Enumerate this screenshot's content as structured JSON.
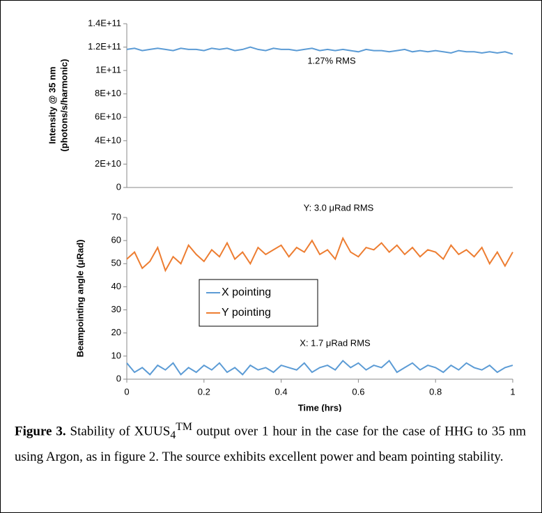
{
  "chart_data": [
    {
      "type": "line",
      "ylabel": [
        "Intensity @ 35 nm",
        "(photons/s/harmonic)"
      ],
      "xlim": [
        0,
        1
      ],
      "ylim": [
        0,
        140000000000.0
      ],
      "yticks": [
        0,
        {
          "value": 20000000000.0,
          "label": "2E+10"
        },
        {
          "value": 40000000000.0,
          "label": "4E+10"
        },
        {
          "value": 60000000000.0,
          "label": "6E+10"
        },
        {
          "value": 80000000000.0,
          "label": "8E+10"
        },
        {
          "value": 100000000000.0,
          "label": "1E+11"
        },
        {
          "value": 120000000000.0,
          "label": "1.2E+11"
        },
        {
          "value": 140000000000.0,
          "label": "1.4E+11"
        }
      ],
      "annotations": [
        {
          "text": "1.27% RMS"
        }
      ],
      "x": [
        0,
        0.02,
        0.04,
        0.06,
        0.08,
        0.1,
        0.12,
        0.14,
        0.16,
        0.18,
        0.2,
        0.22,
        0.24,
        0.26,
        0.28,
        0.3,
        0.32,
        0.34,
        0.36,
        0.38,
        0.4,
        0.42,
        0.44,
        0.46,
        0.48,
        0.5,
        0.52,
        0.54,
        0.56,
        0.58,
        0.6,
        0.62,
        0.64,
        0.66,
        0.68,
        0.7,
        0.72,
        0.74,
        0.76,
        0.78,
        0.8,
        0.82,
        0.84,
        0.86,
        0.88,
        0.9,
        0.92,
        0.94,
        0.96,
        0.98,
        1
      ],
      "series": [
        {
          "name": "Intensity",
          "color": "#5b9bd5",
          "values": [
            118000000000.0,
            119000000000.0,
            117000000000.0,
            118000000000.0,
            119000000000.0,
            118000000000.0,
            117000000000.0,
            119000000000.0,
            118000000000.0,
            118000000000.0,
            117000000000.0,
            119000000000.0,
            118000000000.0,
            119000000000.0,
            117000000000.0,
            118000000000.0,
            120000000000.0,
            118000000000.0,
            117000000000.0,
            119000000000.0,
            118000000000.0,
            118000000000.0,
            117000000000.0,
            118000000000.0,
            119000000000.0,
            117000000000.0,
            118000000000.0,
            117000000000.0,
            118000000000.0,
            117000000000.0,
            116000000000.0,
            118000000000.0,
            117000000000.0,
            117000000000.0,
            116000000000.0,
            117000000000.0,
            118000000000.0,
            116000000000.0,
            117000000000.0,
            116000000000.0,
            117000000000.0,
            116000000000.0,
            115000000000.0,
            117000000000.0,
            116000000000.0,
            116000000000.0,
            115000000000.0,
            116000000000.0,
            115000000000.0,
            116000000000.0,
            114000000000.0
          ]
        }
      ]
    },
    {
      "type": "line",
      "ylabel": [
        "Beampointing angle (μRad)"
      ],
      "xlabel": "Time (hrs)",
      "xlim": [
        0,
        1
      ],
      "xticks": [
        0,
        0.2,
        0.4,
        0.6,
        0.8,
        1
      ],
      "ylim": [
        0,
        70
      ],
      "yticks": [
        0,
        10,
        20,
        30,
        40,
        50,
        60,
        70
      ],
      "legend": "center-left",
      "annotations": [
        {
          "text": "Y: 3.0 μRad RMS"
        },
        {
          "text": "X: 1.7 μRad RMS"
        }
      ],
      "x": [
        0,
        0.02,
        0.04,
        0.06,
        0.08,
        0.1,
        0.12,
        0.14,
        0.16,
        0.18,
        0.2,
        0.22,
        0.24,
        0.26,
        0.28,
        0.3,
        0.32,
        0.34,
        0.36,
        0.38,
        0.4,
        0.42,
        0.44,
        0.46,
        0.48,
        0.5,
        0.52,
        0.54,
        0.56,
        0.58,
        0.6,
        0.62,
        0.64,
        0.66,
        0.68,
        0.7,
        0.72,
        0.74,
        0.76,
        0.78,
        0.8,
        0.82,
        0.84,
        0.86,
        0.88,
        0.9,
        0.92,
        0.94,
        0.96,
        0.98,
        1
      ],
      "series": [
        {
          "name": "X pointing",
          "color": "#5b9bd5",
          "values": [
            7,
            3,
            5,
            2,
            6,
            4,
            7,
            2,
            5,
            3,
            6,
            4,
            7,
            3,
            5,
            2,
            6,
            4,
            5,
            3,
            6,
            5,
            4,
            7,
            3,
            5,
            6,
            4,
            8,
            5,
            7,
            4,
            6,
            5,
            8,
            3,
            5,
            7,
            4,
            6,
            5,
            3,
            6,
            4,
            7,
            5,
            4,
            6,
            3,
            5,
            6
          ]
        },
        {
          "name": "Y pointing",
          "color": "#ed7d31",
          "values": [
            52,
            55,
            48,
            51,
            57,
            47,
            53,
            50,
            58,
            54,
            51,
            56,
            53,
            59,
            52,
            55,
            50,
            57,
            54,
            56,
            58,
            53,
            57,
            55,
            60,
            54,
            56,
            52,
            61,
            55,
            53,
            57,
            56,
            59,
            55,
            58,
            54,
            57,
            53,
            56,
            55,
            52,
            58,
            54,
            56,
            53,
            57,
            50,
            55,
            49,
            55
          ]
        }
      ]
    }
  ],
  "caption": {
    "label": "Figure 3.",
    "text_before": " Stability of XUUS",
    "subscript": "4",
    "superscript": "TM",
    "text_after": " output over 1 hour in the case for the case of HHG to 35 nm using Argon, as in figure 2. The source exhibits excellent power and beam pointing stability."
  }
}
